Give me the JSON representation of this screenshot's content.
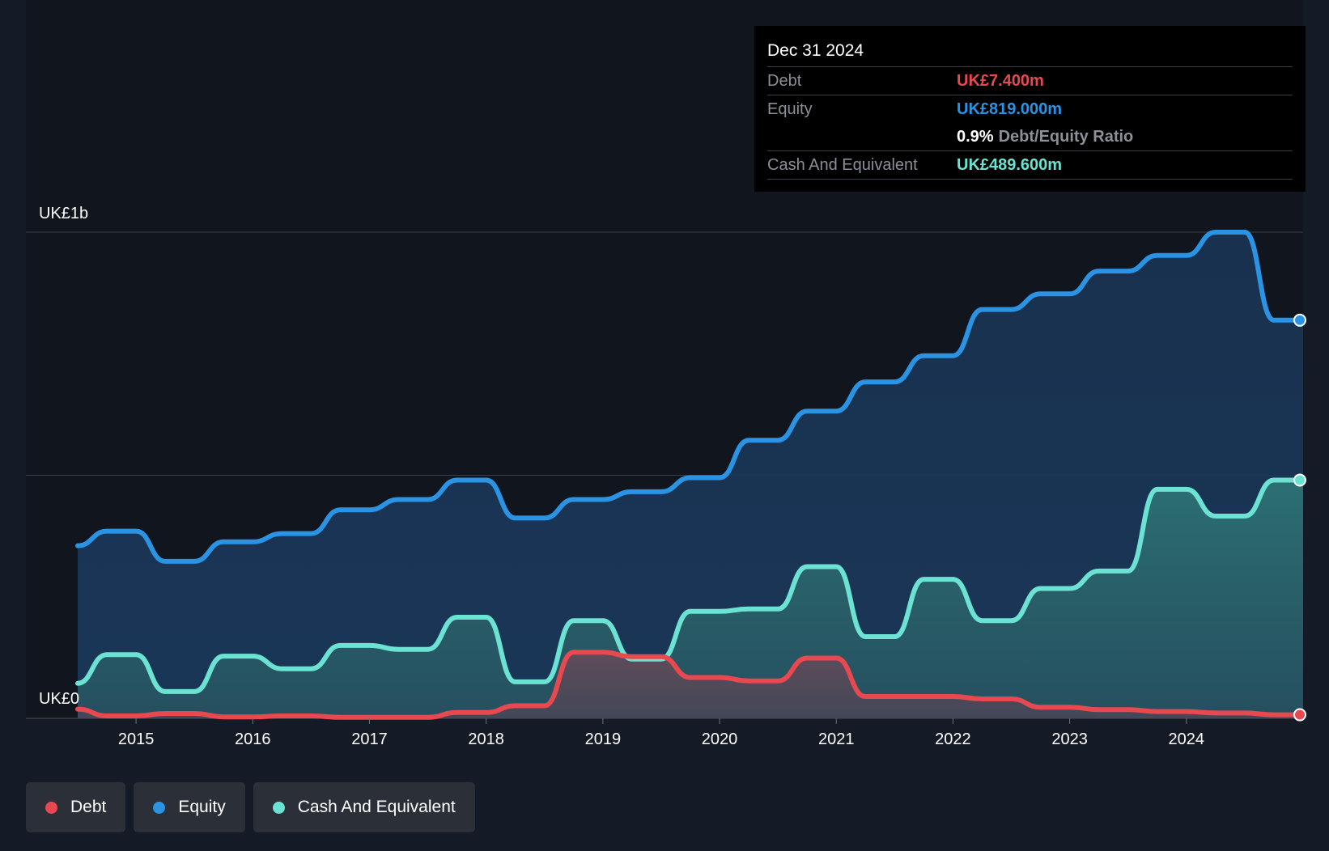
{
  "colors": {
    "debt": "#e8484f",
    "equity": "#2a93e3",
    "cash": "#6ce3d2",
    "background": "#151b26",
    "plot_background": "#10151e"
  },
  "tooltip": {
    "date": "Dec 31 2024",
    "rows": [
      {
        "label": "Debt",
        "value": "UK£7.400m"
      },
      {
        "label": "Equity",
        "value": "UK£819.000m"
      },
      {
        "label": "",
        "value": "0.9%",
        "suffix": "Debt/Equity Ratio"
      },
      {
        "label": "Cash And Equivalent",
        "value": "UK£489.600m"
      }
    ]
  },
  "legend": [
    {
      "label": "Debt",
      "color_key": "debt"
    },
    {
      "label": "Equity",
      "color_key": "equity"
    },
    {
      "label": "Cash And Equivalent",
      "color_key": "cash"
    }
  ],
  "chart_data": {
    "type": "area",
    "y_axis_labels": {
      "top": "UK£1b",
      "bottom": "UK£0"
    },
    "ylim": [
      0,
      1000
    ],
    "xlim": [
      2014.5,
      2025.0
    ],
    "x_ticks": [
      "2015",
      "2016",
      "2017",
      "2018",
      "2019",
      "2020",
      "2021",
      "2022",
      "2023",
      "2024"
    ],
    "grid": true,
    "legend_position": "bottom-left",
    "series": [
      {
        "name": "Equity",
        "color_key": "equity",
        "points": [
          [
            2014.5,
            355
          ],
          [
            2014.75,
            385
          ],
          [
            2015.0,
            385
          ],
          [
            2015.25,
            323
          ],
          [
            2015.5,
            323
          ],
          [
            2015.75,
            363
          ],
          [
            2016.0,
            363
          ],
          [
            2016.25,
            380
          ],
          [
            2016.5,
            380
          ],
          [
            2016.75,
            429
          ],
          [
            2017.0,
            429
          ],
          [
            2017.25,
            450
          ],
          [
            2017.5,
            450
          ],
          [
            2017.75,
            490
          ],
          [
            2018.0,
            490
          ],
          [
            2018.25,
            412
          ],
          [
            2018.5,
            412
          ],
          [
            2018.75,
            450
          ],
          [
            2019.0,
            450
          ],
          [
            2019.25,
            466
          ],
          [
            2019.5,
            466
          ],
          [
            2019.75,
            495
          ],
          [
            2020.0,
            495
          ],
          [
            2020.25,
            572
          ],
          [
            2020.5,
            572
          ],
          [
            2020.75,
            632
          ],
          [
            2021.0,
            632
          ],
          [
            2021.25,
            692
          ],
          [
            2021.5,
            692
          ],
          [
            2021.75,
            746
          ],
          [
            2022.0,
            746
          ],
          [
            2022.25,
            841
          ],
          [
            2022.5,
            841
          ],
          [
            2022.75,
            873
          ],
          [
            2023.0,
            873
          ],
          [
            2023.25,
            920
          ],
          [
            2023.5,
            920
          ],
          [
            2023.75,
            952
          ],
          [
            2024.0,
            952
          ],
          [
            2024.25,
            1000
          ],
          [
            2024.5,
            1000
          ],
          [
            2024.75,
            819
          ],
          [
            2025.0,
            819
          ]
        ]
      },
      {
        "name": "Cash And Equivalent",
        "color_key": "cash",
        "points": [
          [
            2014.5,
            72
          ],
          [
            2014.75,
            131
          ],
          [
            2015.0,
            131
          ],
          [
            2015.25,
            55
          ],
          [
            2015.5,
            55
          ],
          [
            2015.75,
            128
          ],
          [
            2016.0,
            128
          ],
          [
            2016.25,
            102
          ],
          [
            2016.5,
            102
          ],
          [
            2016.75,
            150
          ],
          [
            2017.0,
            150
          ],
          [
            2017.25,
            142
          ],
          [
            2017.5,
            142
          ],
          [
            2017.75,
            208
          ],
          [
            2018.0,
            208
          ],
          [
            2018.25,
            75
          ],
          [
            2018.5,
            75
          ],
          [
            2018.75,
            201
          ],
          [
            2019.0,
            201
          ],
          [
            2019.25,
            122
          ],
          [
            2019.5,
            122
          ],
          [
            2019.75,
            220
          ],
          [
            2020.0,
            220
          ],
          [
            2020.25,
            225
          ],
          [
            2020.5,
            225
          ],
          [
            2020.75,
            312
          ],
          [
            2021.0,
            312
          ],
          [
            2021.25,
            168
          ],
          [
            2021.5,
            168
          ],
          [
            2021.75,
            286
          ],
          [
            2022.0,
            286
          ],
          [
            2022.25,
            201
          ],
          [
            2022.5,
            201
          ],
          [
            2022.75,
            267
          ],
          [
            2023.0,
            267
          ],
          [
            2023.25,
            303
          ],
          [
            2023.5,
            303
          ],
          [
            2023.75,
            471
          ],
          [
            2024.0,
            471
          ],
          [
            2024.25,
            416
          ],
          [
            2024.5,
            416
          ],
          [
            2024.75,
            490
          ],
          [
            2025.0,
            490
          ]
        ]
      },
      {
        "name": "Debt",
        "color_key": "debt",
        "points": [
          [
            2014.5,
            19
          ],
          [
            2014.75,
            5
          ],
          [
            2015.0,
            5
          ],
          [
            2015.25,
            10
          ],
          [
            2015.5,
            10
          ],
          [
            2015.75,
            3
          ],
          [
            2016.0,
            3
          ],
          [
            2016.25,
            5
          ],
          [
            2016.5,
            5
          ],
          [
            2016.75,
            2
          ],
          [
            2017.0,
            2
          ],
          [
            2017.25,
            2
          ],
          [
            2017.5,
            2
          ],
          [
            2017.75,
            12
          ],
          [
            2018.0,
            12
          ],
          [
            2018.25,
            26
          ],
          [
            2018.5,
            26
          ],
          [
            2018.75,
            136
          ],
          [
            2019.0,
            136
          ],
          [
            2019.25,
            127
          ],
          [
            2019.5,
            127
          ],
          [
            2019.75,
            84
          ],
          [
            2020.0,
            84
          ],
          [
            2020.25,
            77
          ],
          [
            2020.5,
            77
          ],
          [
            2020.75,
            124
          ],
          [
            2021.0,
            124
          ],
          [
            2021.25,
            45
          ],
          [
            2021.5,
            45
          ],
          [
            2021.75,
            45
          ],
          [
            2022.0,
            45
          ],
          [
            2022.25,
            40
          ],
          [
            2022.5,
            40
          ],
          [
            2022.75,
            23
          ],
          [
            2023.0,
            23
          ],
          [
            2023.25,
            18
          ],
          [
            2023.5,
            18
          ],
          [
            2023.75,
            14
          ],
          [
            2024.0,
            14
          ],
          [
            2024.25,
            11
          ],
          [
            2024.5,
            11
          ],
          [
            2024.75,
            7.4
          ],
          [
            2025.0,
            7.4
          ]
        ]
      }
    ]
  }
}
